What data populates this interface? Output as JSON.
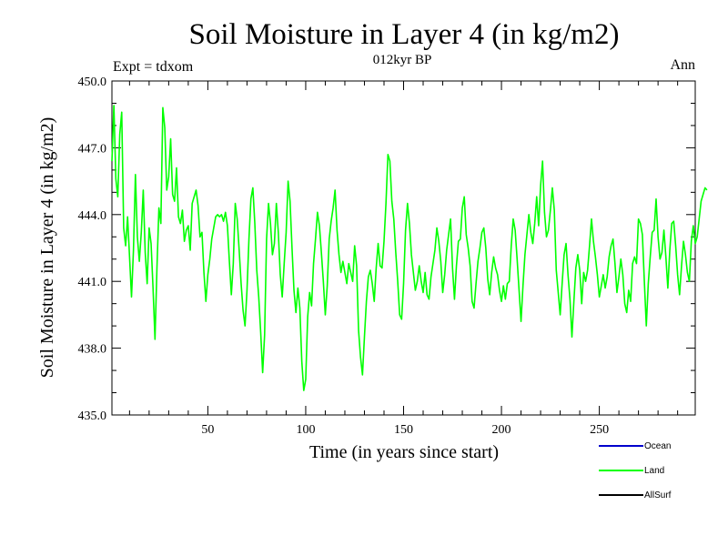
{
  "chart_data": {
    "type": "line",
    "title": "Soil Moisture in Layer 4 (in kg/m2)",
    "subtitle": "012kyr BP",
    "left_label": "Expt = tdxom",
    "right_label": "Ann",
    "xlabel": "Time (in years since start)",
    "ylabel": "Soil Moisture in Layer 4 (in kg/m2)",
    "xlim": [
      1,
      299
    ],
    "ylim": [
      435.0,
      450.0
    ],
    "x_ticks": [
      50,
      100,
      150,
      200,
      250
    ],
    "x_tick_labels": [
      "50",
      "100",
      "150",
      "200",
      "250"
    ],
    "y_ticks": [
      435,
      438,
      441,
      444,
      447,
      450
    ],
    "y_tick_labels": [
      "435.0",
      "438.0",
      "441.0",
      "444.0",
      "447.0",
      "450.0"
    ],
    "legend": [
      {
        "name": "Ocean",
        "color": "#0000cc"
      },
      {
        "name": "Land",
        "color": "#00ff00"
      },
      {
        "name": "AllSurf",
        "color": "#000000"
      }
    ],
    "series": [
      {
        "name": "Land",
        "color": "#00ff00",
        "x_start": 1,
        "x_step": 1,
        "values": [
          446.4,
          448.9,
          445.6,
          444.8,
          447.6,
          448.6,
          443.4,
          442.6,
          443.9,
          442.1,
          440.3,
          442.4,
          445.8,
          443.0,
          441.9,
          443.2,
          445.1,
          442.3,
          440.9,
          443.4,
          442.7,
          440.7,
          438.4,
          441.6,
          444.3,
          443.6,
          448.8,
          447.9,
          445.1,
          445.7,
          447.4,
          444.9,
          444.6,
          446.1,
          443.9,
          443.6,
          444.2,
          442.8,
          443.3,
          443.5,
          442.4,
          444.5,
          444.8,
          445.1,
          444.4,
          443.0,
          443.2,
          441.4,
          440.1,
          441.3,
          442.0,
          442.9,
          443.4,
          443.9,
          444.0,
          443.9,
          444.0,
          443.7,
          444.1,
          443.5,
          441.9,
          440.4,
          441.8,
          444.5,
          443.8,
          442.4,
          440.9,
          439.7,
          439.0,
          440.6,
          442.9,
          444.7,
          445.2,
          443.6,
          441.5,
          440.3,
          438.7,
          436.9,
          438.6,
          442.9,
          444.5,
          443.6,
          442.2,
          442.7,
          444.5,
          443.2,
          441.3,
          440.3,
          441.8,
          443.2,
          445.5,
          444.6,
          442.5,
          440.6,
          439.6,
          440.7,
          439.8,
          437.4,
          436.1,
          436.6,
          439.4,
          440.5,
          439.9,
          441.8,
          442.9,
          444.1,
          443.5,
          442.3,
          441.0,
          439.5,
          440.8,
          442.9,
          443.7,
          444.3,
          445.1,
          443.3,
          442.2,
          441.4,
          441.9,
          441.4,
          440.9,
          441.8,
          441.4,
          441.0,
          442.6,
          441.7,
          438.8,
          437.6,
          436.8,
          438.5,
          440.1,
          441.2,
          441.5,
          440.9,
          440.1,
          441.6,
          442.7,
          441.7,
          441.6,
          442.8,
          444.5,
          446.7,
          446.4,
          444.6,
          443.8,
          442.3,
          441.0,
          439.5,
          439.3,
          440.9,
          443.3,
          444.5,
          443.6,
          442.2,
          441.4,
          440.6,
          441.0,
          441.7,
          441.0,
          440.5,
          441.4,
          440.4,
          440.2,
          441.2,
          441.8,
          442.4,
          443.4,
          442.8,
          441.9,
          440.5,
          441.3,
          442.4,
          443.1,
          443.8,
          441.6,
          440.2,
          441.7,
          442.8,
          442.9,
          444.3,
          444.8,
          443.1,
          442.5,
          441.7,
          440.1,
          439.8,
          440.9,
          441.9,
          442.5,
          443.2,
          443.4,
          442.5,
          441.1,
          440.4,
          441.4,
          442.1,
          441.6,
          441.3,
          440.6,
          440.1,
          440.8,
          440.2,
          440.9,
          441.0,
          442.6,
          443.8,
          443.3,
          442.0,
          440.6,
          439.2,
          440.8,
          442.2,
          443.1,
          444.0,
          443.2,
          442.7,
          443.6,
          444.8,
          443.5,
          445.3,
          446.4,
          444.1,
          443.0,
          443.3,
          444.2,
          445.2,
          444.2,
          441.5,
          440.5,
          439.5,
          440.9,
          442.2,
          442.7,
          441.3,
          440.2,
          438.5,
          440.1,
          441.6,
          442.2,
          441.5,
          440.0,
          441.4,
          441.0,
          441.5,
          442.6,
          443.8,
          442.8,
          442.1,
          441.3,
          440.3,
          440.8,
          441.3,
          440.7,
          441.2,
          442.1,
          442.6,
          442.9,
          441.8,
          440.5,
          441.2,
          442.0,
          441.3,
          440.0,
          439.6,
          440.6,
          440.1,
          441.8,
          442.1,
          441.8,
          443.8,
          443.6,
          443.1,
          441.0,
          439.0,
          440.9,
          442.1,
          443.2,
          443.3,
          444.7,
          443.0,
          442.0,
          442.3,
          443.3,
          442.1,
          440.7,
          442.4,
          443.6,
          443.7,
          442.6,
          441.3,
          440.4,
          441.7,
          442.8,
          442.2,
          441.4,
          441.0,
          442.8,
          443.5,
          442.7,
          443.0,
          443.8,
          444.6,
          444.9,
          445.2,
          445.1
        ]
      }
    ]
  }
}
